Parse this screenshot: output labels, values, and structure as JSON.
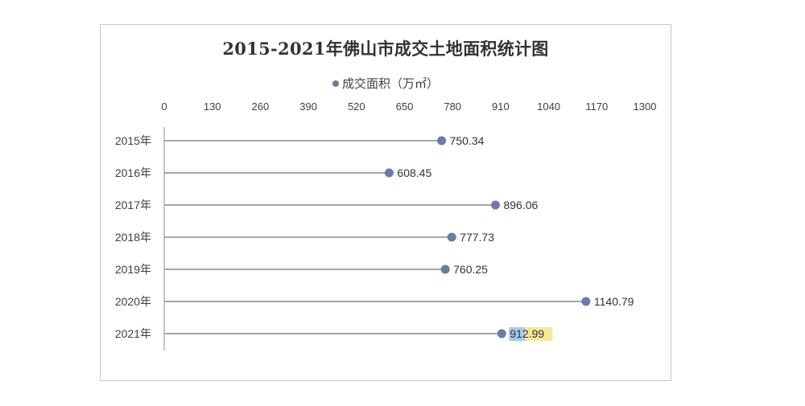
{
  "colors": {
    "marker": "#6b7aa6",
    "stem": "#a6a6a6",
    "axis": "#8c8c8c",
    "text": "#404040",
    "highlight_blue": "#a8c8ee",
    "highlight_yellow": "#f6e27a"
  },
  "chart_data": {
    "type": "lollipop",
    "orientation": "horizontal",
    "title": "2015-2021年佛山市成交土地面积统计图",
    "legend": {
      "position": "top",
      "entries": [
        "成交面积（万㎡）"
      ]
    },
    "xlim": [
      0,
      1300
    ],
    "x_ticks": [
      "0",
      "130",
      "260",
      "390",
      "520",
      "650",
      "780",
      "910",
      "1040",
      "1170",
      "1300"
    ],
    "x_tick_position": "top",
    "categories": [
      "2015年",
      "2016年",
      "2017年",
      "2018年",
      "2019年",
      "2020年",
      "2021年"
    ],
    "series": [
      {
        "name": "成交面积（万㎡）",
        "values": [
          750.34,
          608.45,
          896.06,
          777.73,
          760.25,
          1140.79,
          912.99
        ],
        "labels": [
          "750.34",
          "608.45",
          "896.06",
          "777.73",
          "760.25",
          "1140.79",
          "912.99"
        ]
      }
    ],
    "grid": false
  }
}
